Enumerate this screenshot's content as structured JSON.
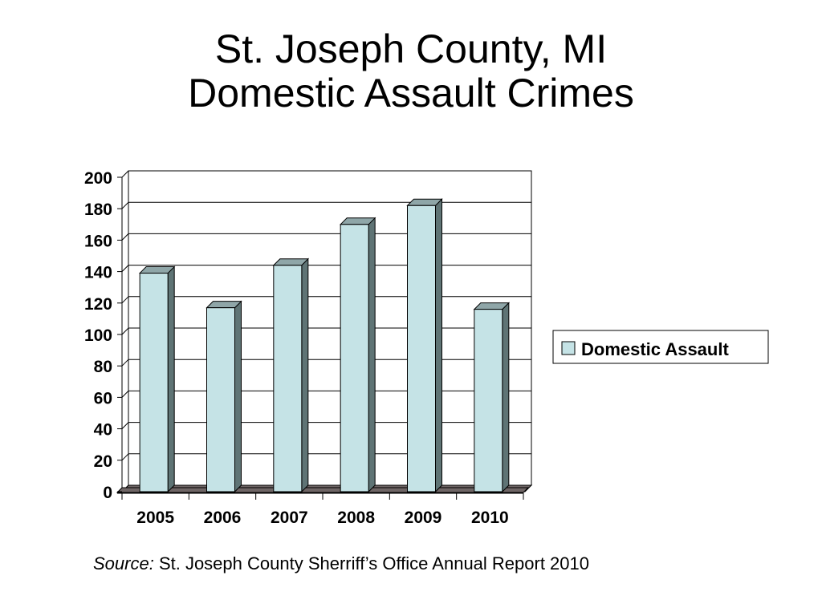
{
  "title": {
    "line1": "St. Joseph County, MI",
    "line2": "Domestic Assault Crimes"
  },
  "chart_data": {
    "type": "bar",
    "categories": [
      "2005",
      "2006",
      "2007",
      "2008",
      "2009",
      "2010"
    ],
    "series": [
      {
        "name": "Domestic Assault",
        "values": [
          139,
          117,
          144,
          170,
          182,
          116
        ]
      }
    ],
    "ylim": [
      0,
      200
    ],
    "yticks": [
      0,
      20,
      40,
      60,
      80,
      100,
      120,
      140,
      160,
      180,
      200
    ],
    "grid": true,
    "legend_position": "right",
    "style": "3d-columns"
  },
  "colors": {
    "bar_front": "#c5e3e6",
    "bar_side": "#5f7475",
    "bar_top": "#8fa6a8",
    "floor": "#6e6565",
    "grid": "#000000"
  },
  "source": {
    "label": "Source:",
    "text": " St. Joseph County Sherriff’s Office Annual Report 2010"
  }
}
